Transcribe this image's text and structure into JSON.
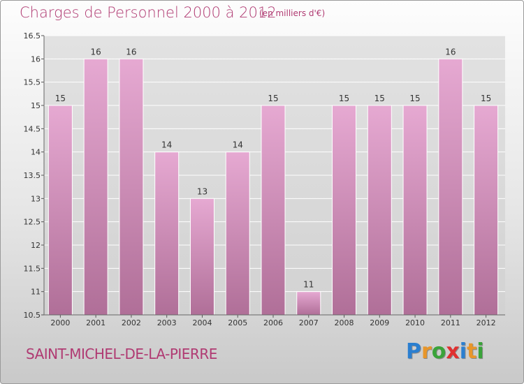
{
  "title": "Charges de Personnel 2000 à 2012",
  "subtitle": "(en milliers d'€)",
  "commune": "SAINT-MICHEL-DE-LA-PIERRE",
  "logo": {
    "text": "Proxiti",
    "letters": [
      {
        "ch": "P",
        "color": "#2b7fd0"
      },
      {
        "ch": "r",
        "color": "#e8962a"
      },
      {
        "ch": "o",
        "color": "#3aa33a"
      },
      {
        "ch": "x",
        "color": "#e03030"
      },
      {
        "ch": "i",
        "color": "#2b7fd0"
      },
      {
        "ch": "t",
        "color": "#e8962a"
      },
      {
        "ch": "i",
        "color": "#3aa33a"
      }
    ]
  },
  "colors": {
    "bar_light": "#e6a9d2",
    "bar_dark": "#b06f98",
    "title": "#b03a72",
    "grid": "#ffffff"
  },
  "chart_data": {
    "type": "bar",
    "categories": [
      "2000",
      "2001",
      "2002",
      "2003",
      "2004",
      "2005",
      "2006",
      "2007",
      "2008",
      "2009",
      "2010",
      "2011",
      "2012"
    ],
    "values": [
      15,
      16,
      16,
      14,
      13,
      14,
      15,
      11,
      15,
      15,
      15,
      16,
      15
    ],
    "ylim": [
      10.5,
      16.5
    ],
    "yticks": [
      "10.5",
      "11",
      "11.5",
      "12",
      "12.5",
      "13",
      "13.5",
      "14",
      "14.5",
      "15",
      "15.5",
      "16",
      "16.5"
    ],
    "title": "Charges de Personnel 2000 à 2012",
    "xlabel": "",
    "ylabel": "",
    "grid": true
  }
}
